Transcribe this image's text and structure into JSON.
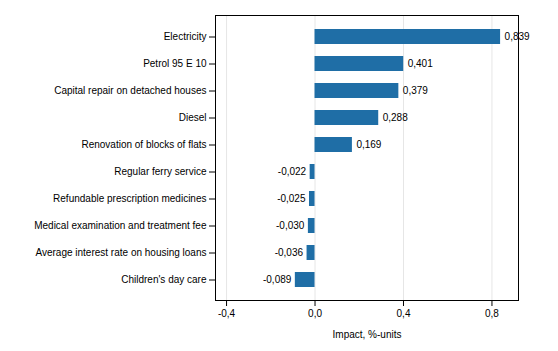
{
  "chart_data": {
    "type": "bar",
    "orientation": "horizontal",
    "categories": [
      "Children's day care",
      "Average interest rate on housing loans",
      "Medical examination and treatment fee",
      "Refundable prescription medicines",
      "Regular ferry service",
      "Renovation of blocks of flats",
      "Diesel",
      "Capital repair on detached houses",
      "Petrol 95 E 10",
      "Electricity"
    ],
    "values": [
      -0.089,
      -0.036,
      -0.03,
      -0.025,
      -0.022,
      0.169,
      0.288,
      0.379,
      0.401,
      0.839
    ],
    "value_labels": [
      "-0,089",
      "-0,036",
      "-0,030",
      "-0,025",
      "-0,022",
      "0,169",
      "0,288",
      "0,379",
      "0,401",
      "0,839"
    ],
    "data_labels": true,
    "color": "#1f6ea6",
    "xlabel": "Impact, %-units",
    "xlim": [
      -0.45,
      0.92
    ],
    "xticks": [
      {
        "value": -0.4,
        "label": "-0,4"
      },
      {
        "value": 0.0,
        "label": "0,0"
      },
      {
        "value": 0.4,
        "label": "0,4"
      },
      {
        "value": 0.8,
        "label": "0,8"
      }
    ],
    "grid": true
  }
}
